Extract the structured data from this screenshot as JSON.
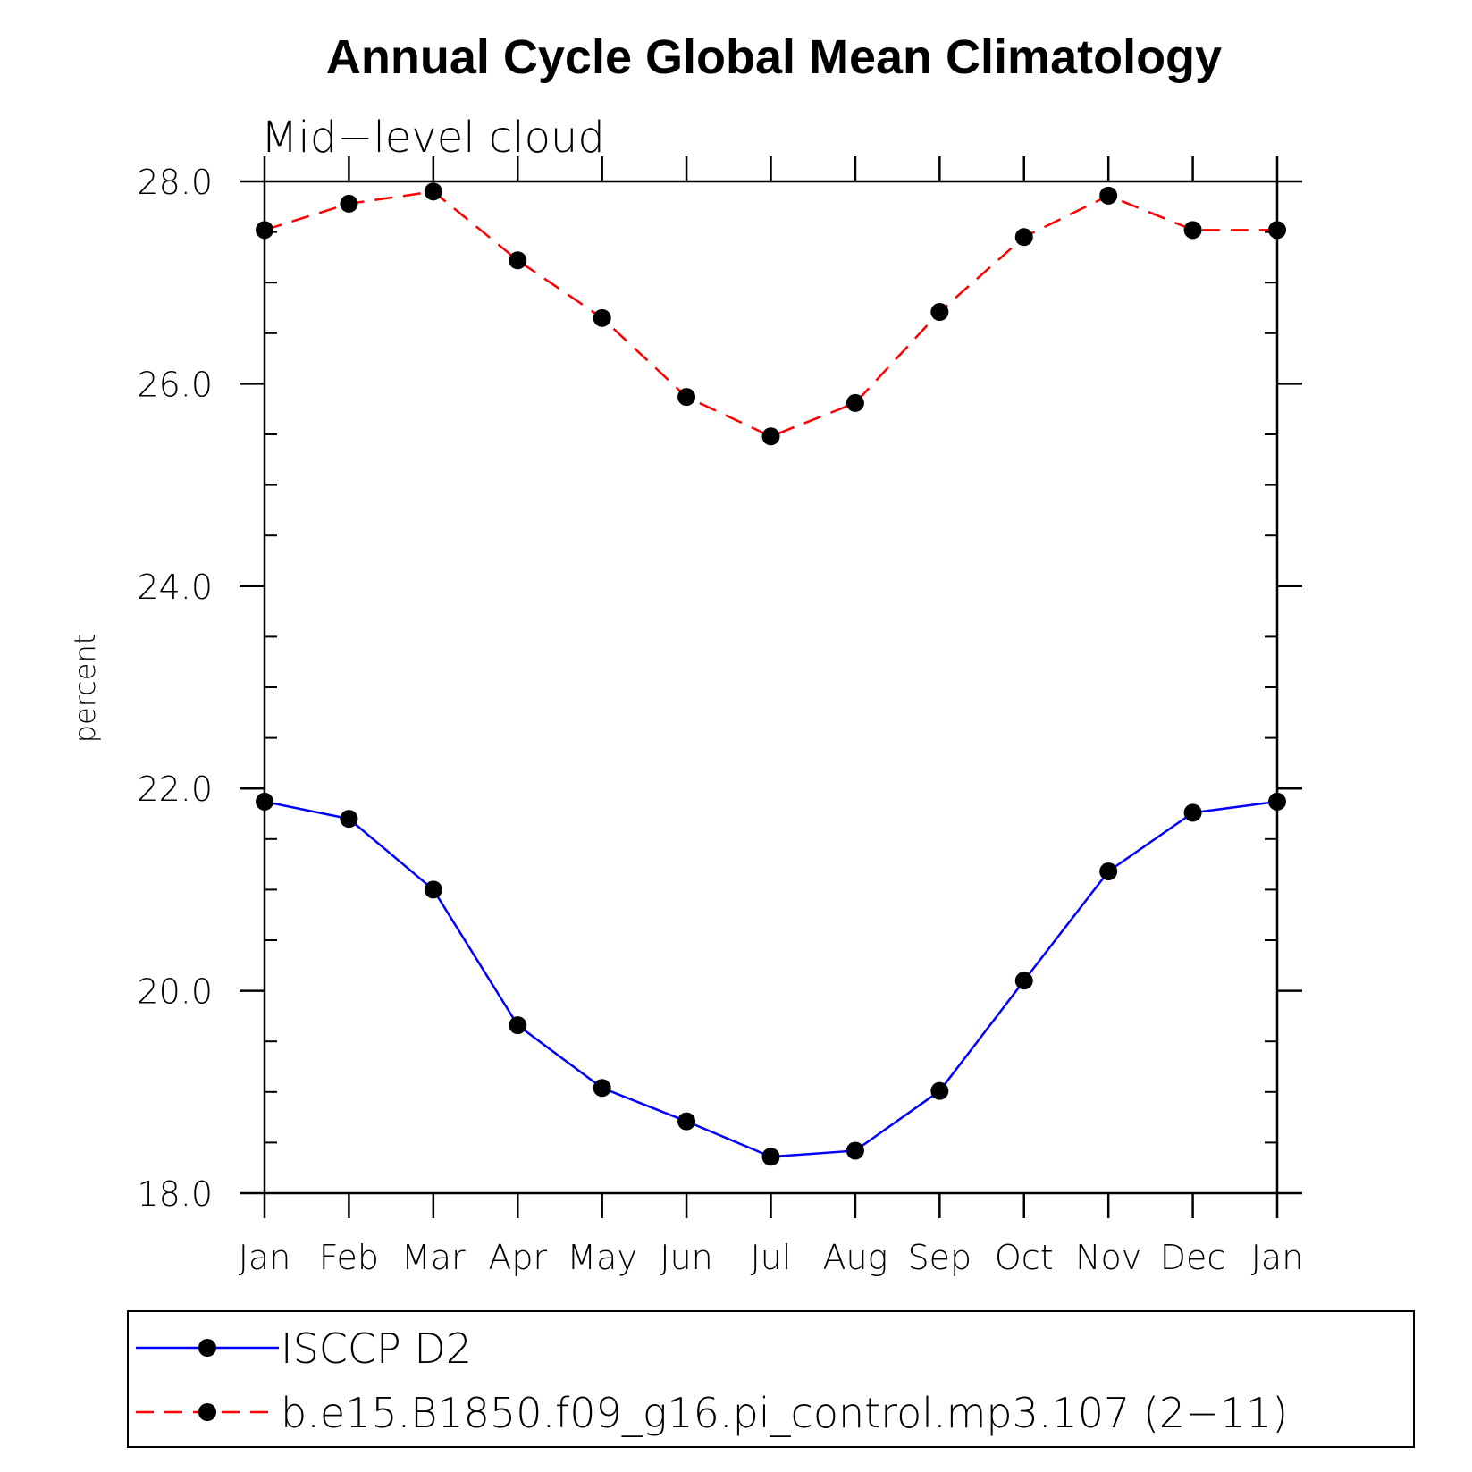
{
  "chart_data": {
    "type": "line",
    "title": "Annual Cycle Global Mean Climatology",
    "subtitle": "Mid−level cloud",
    "ylabel": "percent",
    "xlabel": "",
    "categories": [
      "Jan",
      "Feb",
      "Mar",
      "Apr",
      "May",
      "Jun",
      "Jul",
      "Aug",
      "Sep",
      "Oct",
      "Nov",
      "Dec",
      "Jan"
    ],
    "ylim": [
      18.0,
      28.0
    ],
    "yticks": [
      "18.0",
      "20.0",
      "22.0",
      "24.0",
      "26.0",
      "28.0"
    ],
    "grid": false,
    "legend_position": "bottom",
    "series": [
      {
        "name": "ISCCP D2",
        "color": "#0000ff",
        "dash": "solid",
        "marker": "filled-circle",
        "values": [
          21.87,
          21.7,
          21.0,
          19.66,
          19.04,
          18.71,
          18.36,
          18.42,
          19.01,
          20.1,
          21.18,
          21.76,
          21.87
        ]
      },
      {
        "name": "b.e15.B1850.f09_g16.pi_control.mp3.107 (2−11)",
        "color": "#ff0000",
        "dash": "dashed",
        "marker": "filled-circle",
        "values": [
          27.52,
          27.78,
          27.9,
          27.22,
          26.65,
          25.87,
          25.48,
          25.81,
          26.71,
          27.45,
          27.86,
          27.52,
          27.52
        ]
      }
    ]
  }
}
